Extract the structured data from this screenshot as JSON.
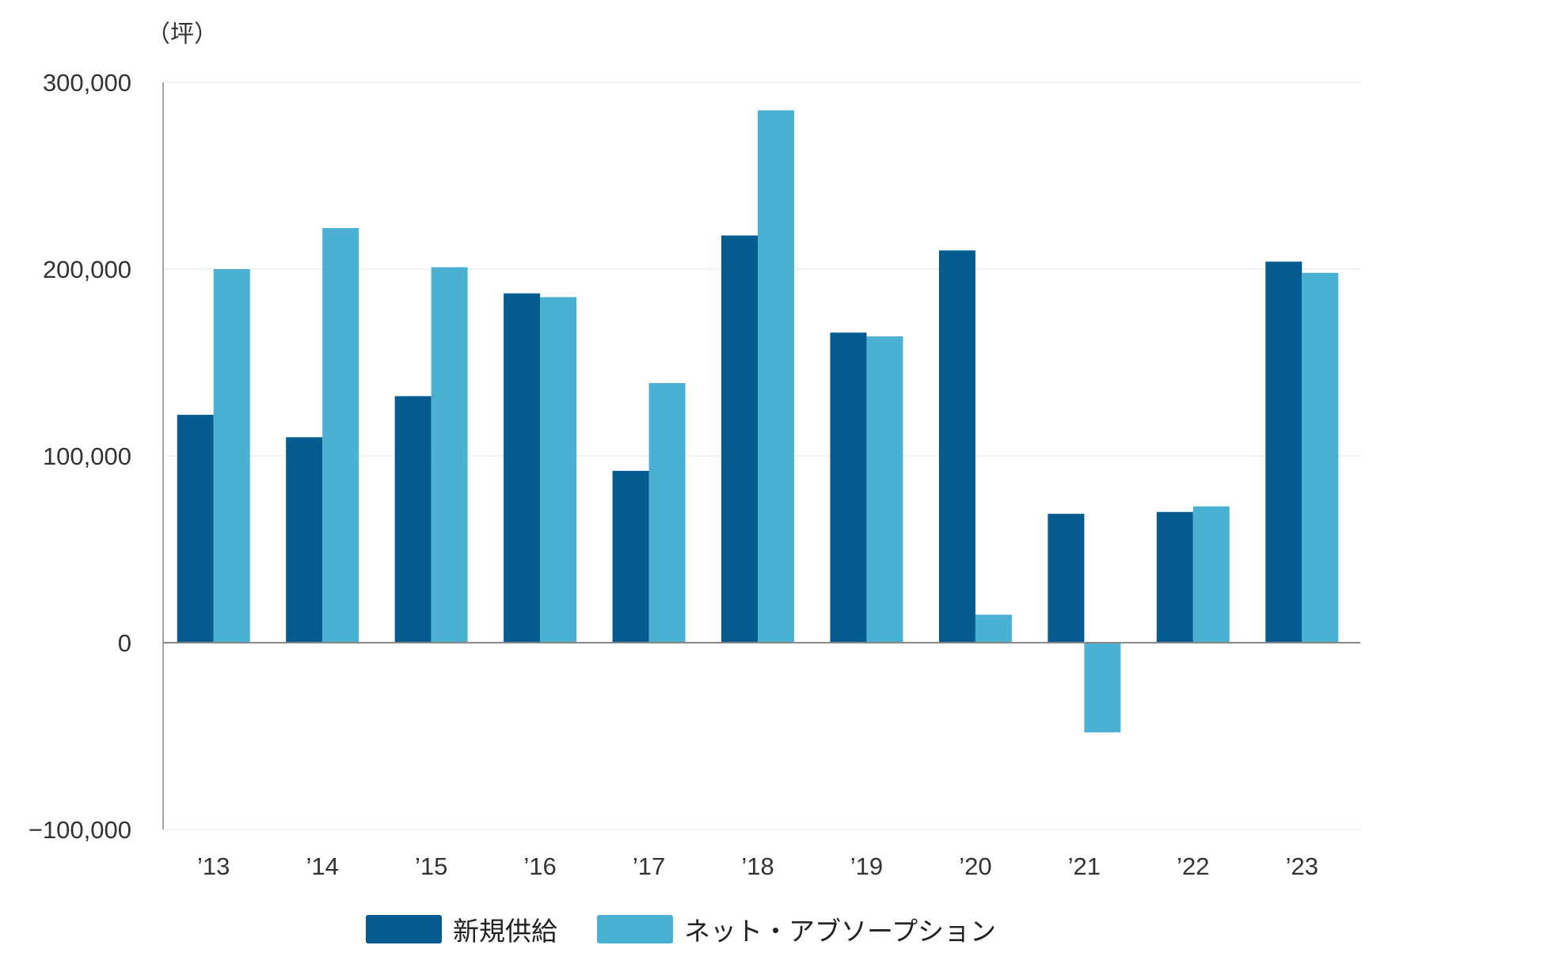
{
  "chart_data": {
    "type": "bar",
    "unit_label": "（坪）",
    "categories": [
      "’13",
      "’14",
      "’15",
      "’16",
      "’17",
      "’18",
      "’19",
      "’20",
      "’21",
      "’22",
      "’23"
    ],
    "series": [
      {
        "name": "新規供給",
        "color": "#035B8F",
        "values": [
          122000,
          110000,
          132000,
          187000,
          92000,
          218000,
          166000,
          210000,
          69000,
          70000,
          204000
        ]
      },
      {
        "name": "ネット・アブソープション",
        "color": "#4AB1D3",
        "values": [
          200000,
          222000,
          201000,
          185000,
          139000,
          285000,
          164000,
          15000,
          -48000,
          73000,
          198000
        ]
      }
    ],
    "ylim": [
      -100000,
      300000
    ],
    "yticks": [
      {
        "value": 300000,
        "label": "300,000",
        "color": "#333333"
      },
      {
        "value": 200000,
        "label": "200,000",
        "color": "#333333"
      },
      {
        "value": 100000,
        "label": "100,000",
        "color": "#333333"
      },
      {
        "value": 0,
        "label": "0",
        "color": "#333333"
      },
      {
        "value": -100000,
        "label": "−100,000",
        "color": "#E00000"
      }
    ],
    "legend_position": "bottom-center",
    "grid": true
  }
}
